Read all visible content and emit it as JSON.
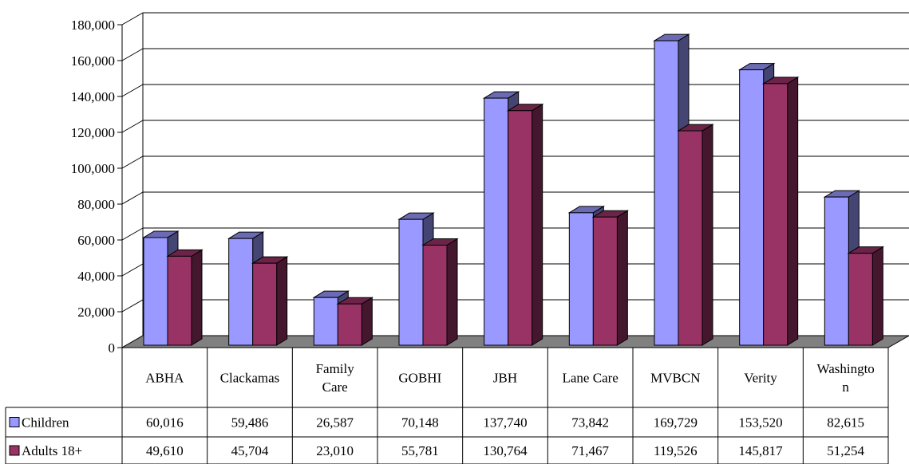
{
  "chart_data": {
    "type": "bar",
    "title": "",
    "xlabel": "",
    "ylabel": "",
    "ylim": [
      0,
      180000
    ],
    "y_ticks": [
      "0",
      "20,000",
      "40,000",
      "60,000",
      "80,000",
      "100,000",
      "120,000",
      "140,000",
      "160,000",
      "180,000"
    ],
    "grid": true,
    "legend_placement": "data-table-left",
    "categories": [
      "ABHA",
      "Clackamas",
      "Family Care",
      "GOBHI",
      "JBH",
      "Lane Care",
      "MVBCN",
      "Verity",
      "Washington"
    ],
    "category_display": [
      [
        "ABHA"
      ],
      [
        "Clackamas"
      ],
      [
        "Family",
        "Care"
      ],
      [
        "GOBHI"
      ],
      [
        "JBH"
      ],
      [
        "Lane Care"
      ],
      [
        "MVBCN"
      ],
      [
        "Verity"
      ],
      [
        "Washingto",
        "n"
      ]
    ],
    "series": [
      {
        "name": "Children",
        "color": "#9999ff",
        "values": [
          60016,
          59486,
          26587,
          70148,
          137740,
          73842,
          169729,
          153520,
          82615
        ],
        "labels": [
          "60,016",
          "59,486",
          "26,587",
          "70,148",
          "137,740",
          "73,842",
          "169,729",
          "153,520",
          "82,615"
        ]
      },
      {
        "name": "Adults 18+",
        "color": "#993366",
        "values": [
          49610,
          45704,
          23010,
          55781,
          130764,
          71467,
          119526,
          145817,
          51254
        ],
        "labels": [
          "49,610",
          "45,704",
          "23,010",
          "55,781",
          "130,764",
          "71,467",
          "119,526",
          "145,817",
          "51,254"
        ]
      }
    ]
  }
}
